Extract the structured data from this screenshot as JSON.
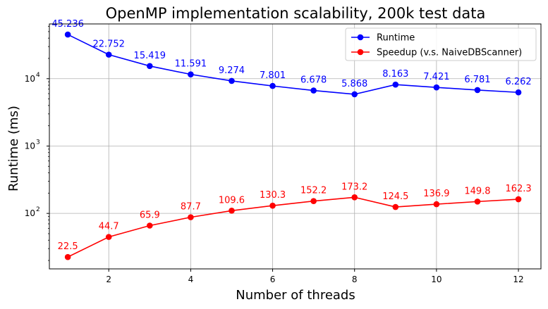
{
  "chart_data": {
    "type": "line",
    "title": "OpenMP implementation scalability, 200k test data",
    "xlabel": "Number of threads",
    "ylabel": "Runtime (ms)",
    "x": [
      1,
      2,
      3,
      4,
      5,
      6,
      7,
      8,
      9,
      10,
      11,
      12
    ],
    "xticks": [
      2,
      4,
      6,
      8,
      10,
      12
    ],
    "xticks_text": [
      "2",
      "4",
      "6",
      "8",
      "10",
      "12"
    ],
    "xlim": [
      0.55,
      12.55
    ],
    "yscale": "log",
    "ylim": [
      15,
      65000
    ],
    "yticks": [
      100,
      1000,
      10000
    ],
    "yticks_text": [
      {
        "base": "10",
        "exp": "2"
      },
      {
        "base": "10",
        "exp": "3"
      },
      {
        "base": "10",
        "exp": "4"
      }
    ],
    "grid": true,
    "legend_position": "top-right",
    "series": [
      {
        "name": "Runtime",
        "color": "#0000ff",
        "marker": "circle",
        "values": [
          45236,
          22752,
          15419,
          11591,
          9274,
          7801,
          6678,
          5868,
          8163,
          7421,
          6781,
          6262
        ],
        "labels": [
          "45.236",
          "22.752",
          "15.419",
          "11.591",
          "9.274",
          "7.801",
          "6.678",
          "5.868",
          "8.163",
          "7.421",
          "6.781",
          "6.262"
        ]
      },
      {
        "name": "Speedup (v.s. NaiveDBScanner)",
        "color": "#ff0000",
        "marker": "circle",
        "values": [
          22.5,
          44.7,
          65.9,
          87.7,
          109.6,
          130.3,
          152.2,
          173.2,
          124.5,
          136.9,
          149.8,
          162.3
        ],
        "labels": [
          "22.5",
          "44.7",
          "65.9",
          "87.7",
          "109.6",
          "130.3",
          "152.2",
          "173.2",
          "124.5",
          "136.9",
          "149.8",
          "162.3"
        ]
      }
    ]
  }
}
